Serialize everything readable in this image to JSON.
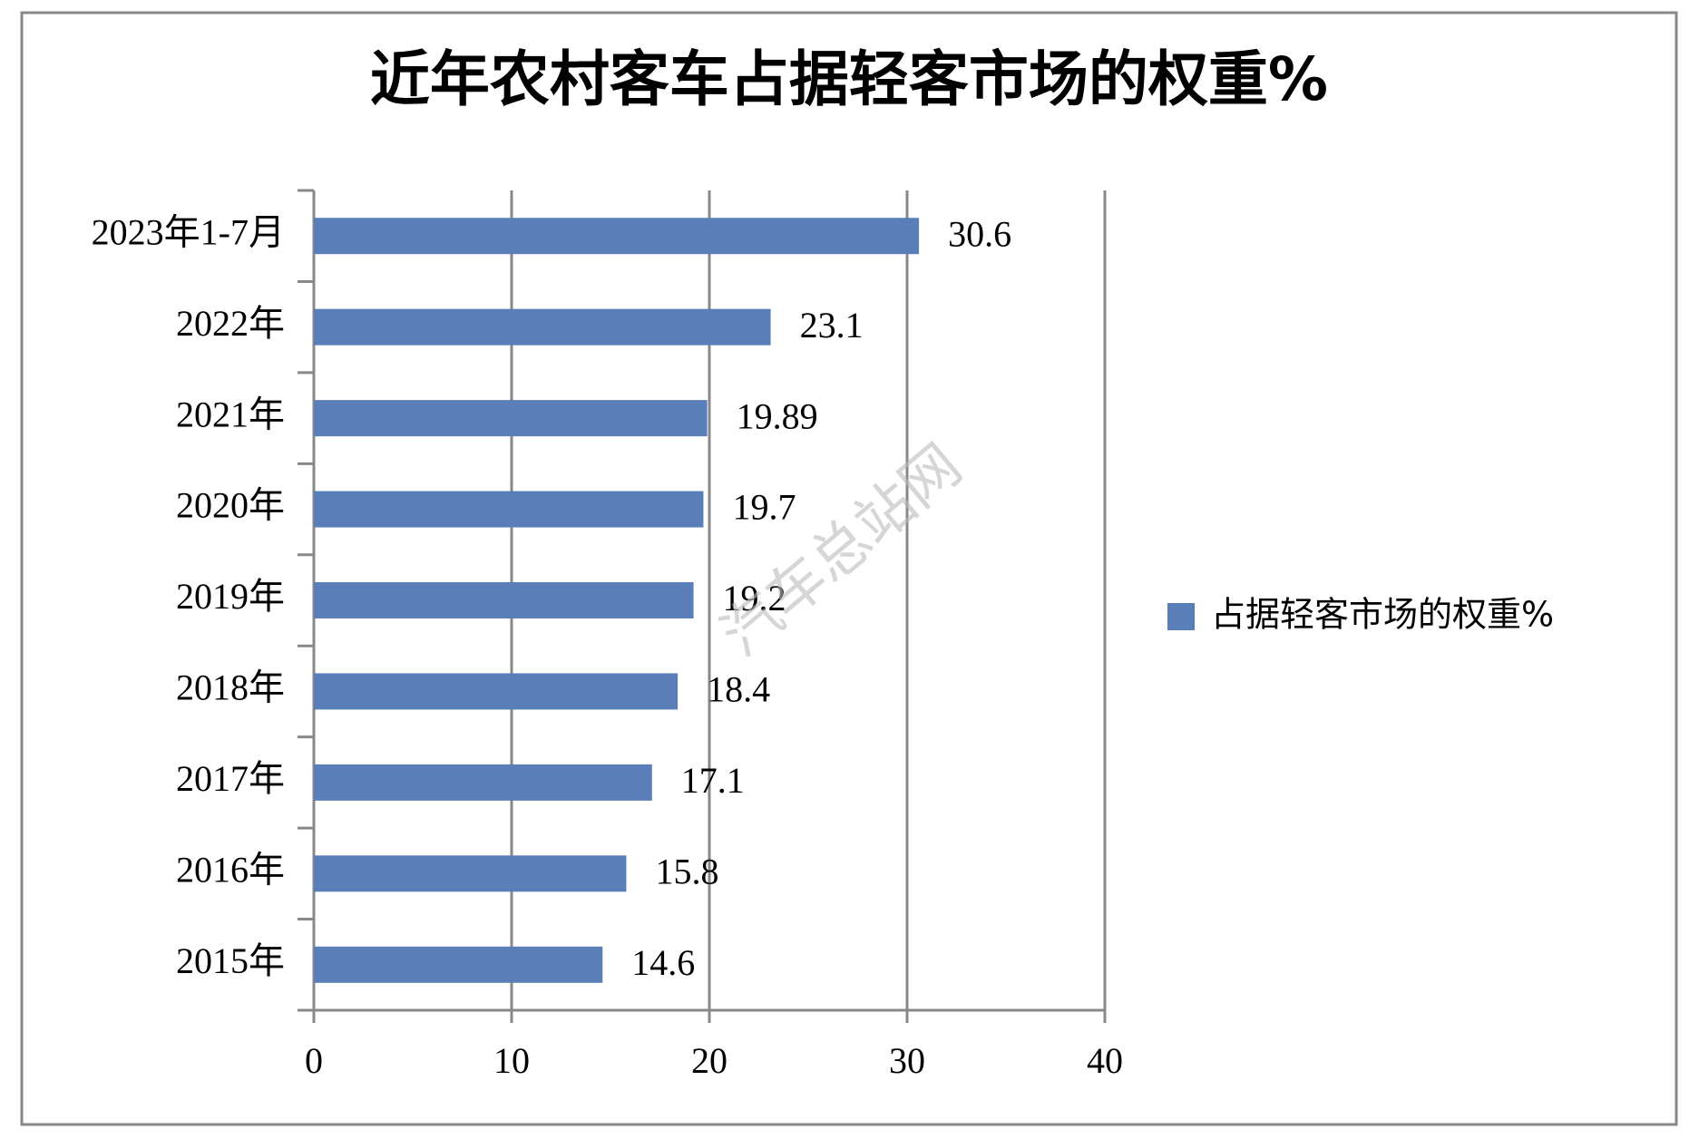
{
  "chart_data": {
    "type": "bar",
    "orientation": "horizontal",
    "title": "近年农村客车占据轻客市场的权重%",
    "categories": [
      "2023年1-7月",
      "2022年",
      "2021年",
      "2020年",
      "2019年",
      "2018年",
      "2017年",
      "2016年",
      "2015年"
    ],
    "series": [
      {
        "name": "占据轻客市场的权重%",
        "color": "#5a7fb8",
        "values": [
          30.6,
          23.1,
          19.89,
          19.7,
          19.2,
          18.4,
          17.1,
          15.8,
          14.6
        ]
      }
    ],
    "xlim": [
      0,
      40
    ],
    "xticks": [
      0,
      10,
      20,
      30,
      40
    ],
    "grid": true,
    "legend": "right",
    "watermark": "汽车总站网"
  }
}
